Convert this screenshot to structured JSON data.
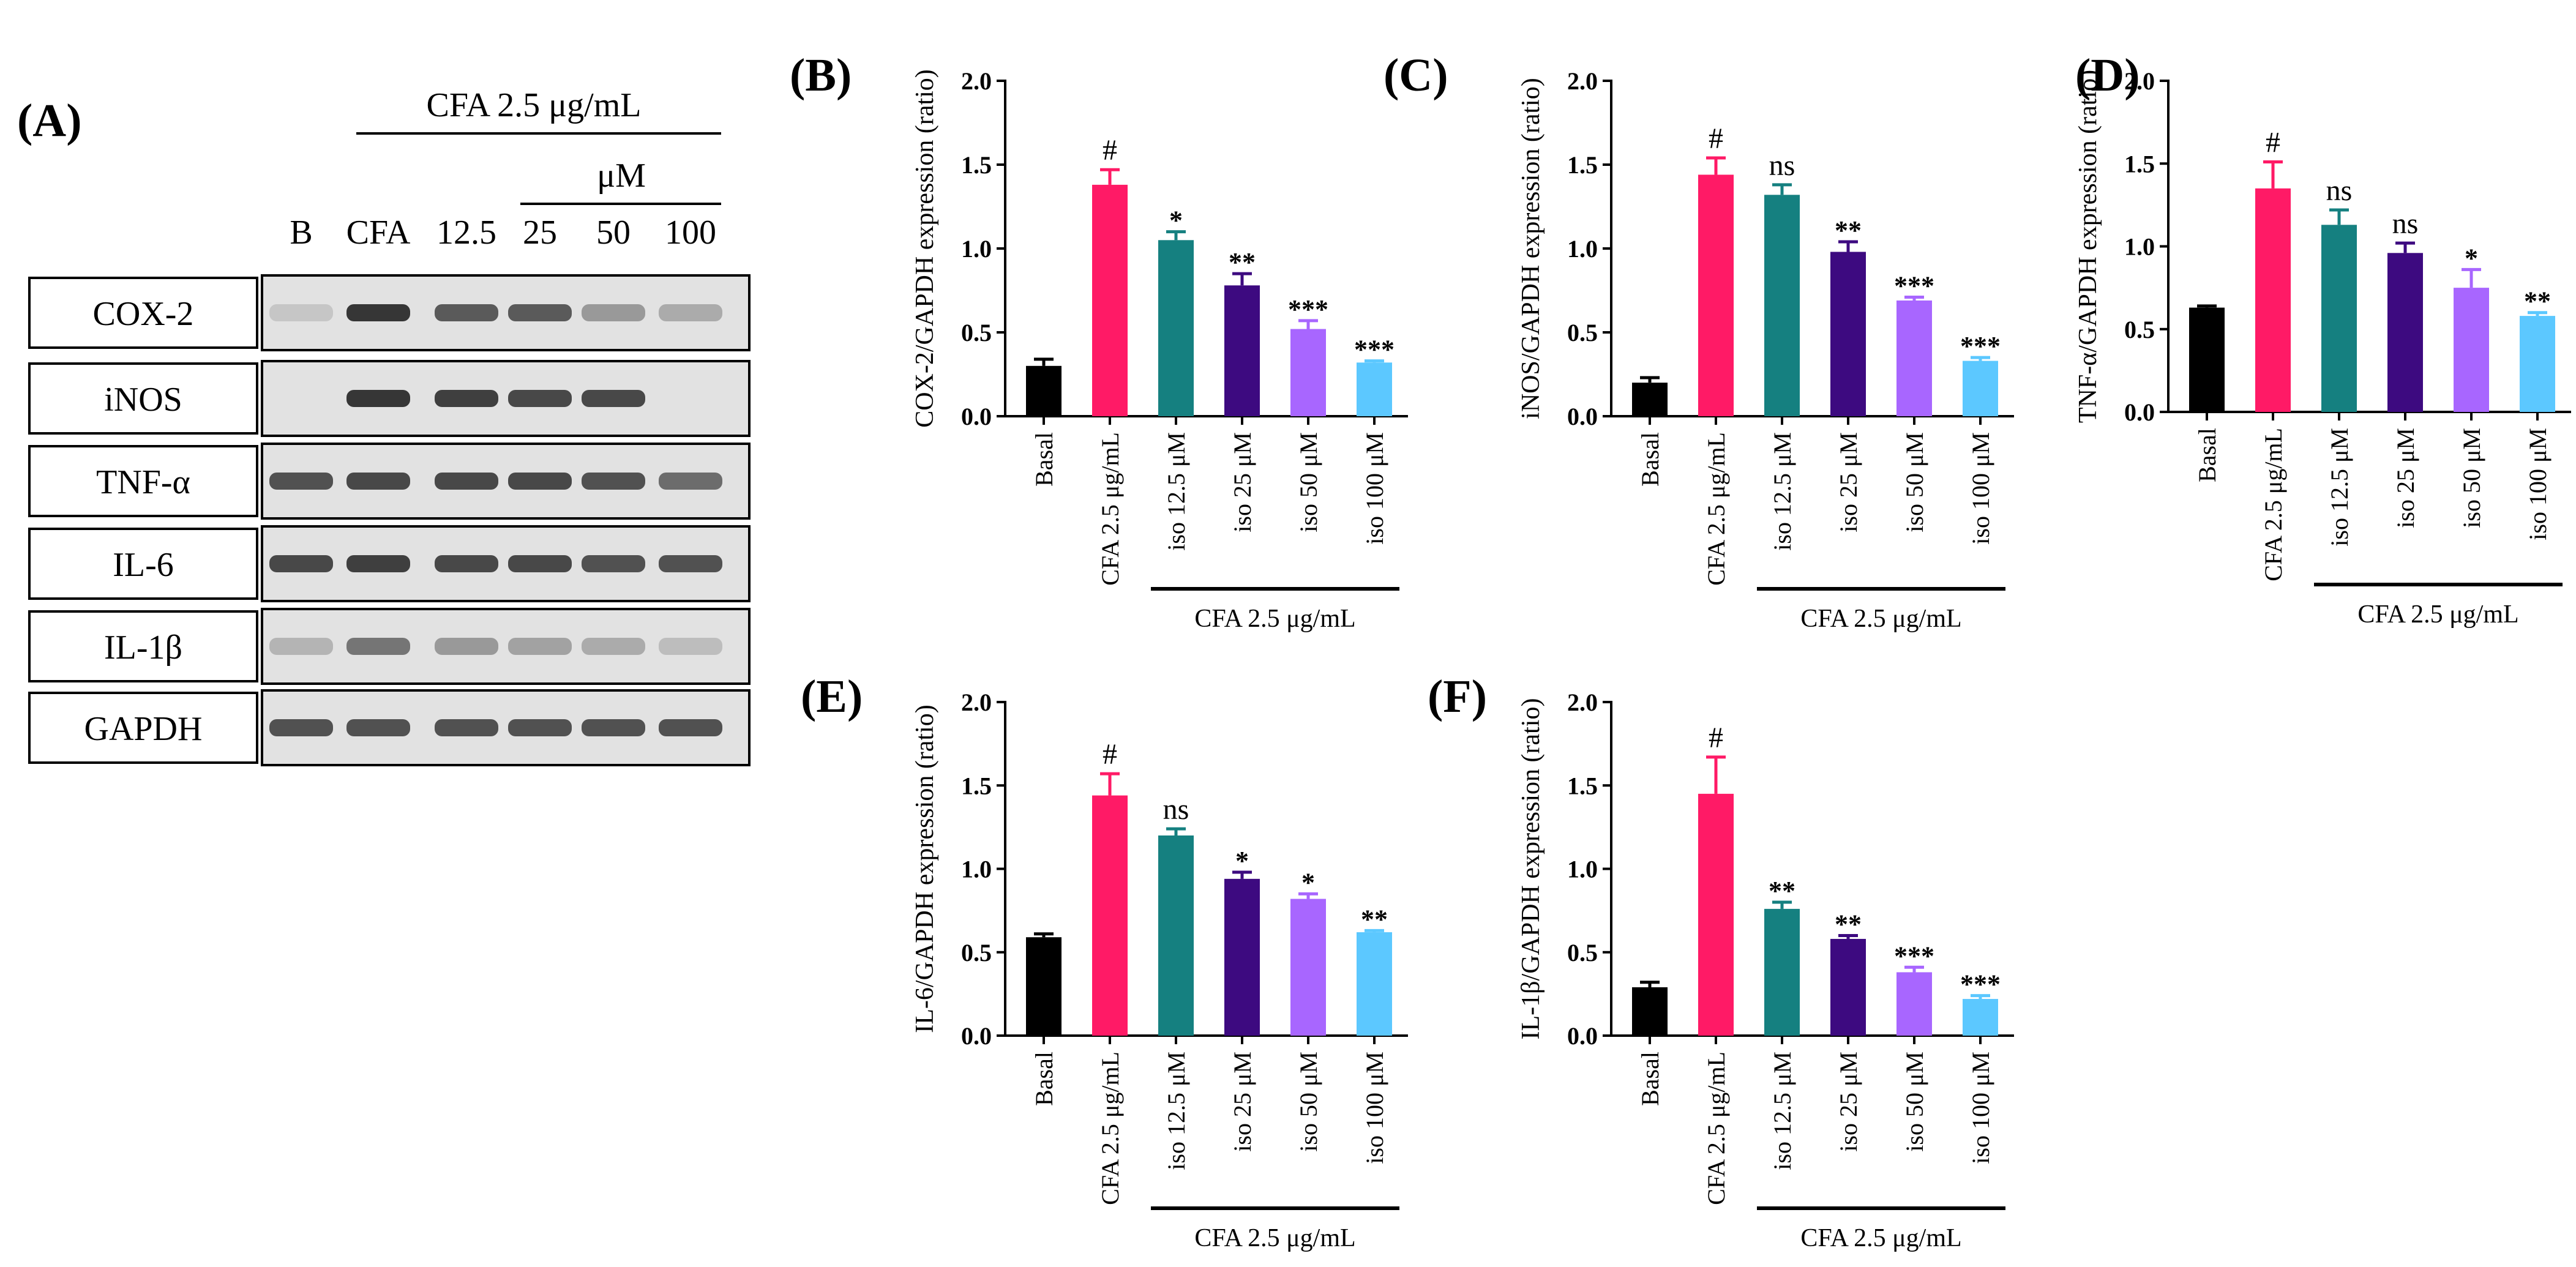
{
  "figure": {
    "blot": {
      "panel_label": "(A)",
      "treatment_header": "CFA 2.5 μg/mL",
      "concentration_unit": "μM",
      "lane_labels": [
        "B",
        "CFA",
        "12.5",
        "25",
        "50",
        "100"
      ],
      "rows": [
        {
          "label": "COX-2",
          "intensities": [
            0.15,
            0.95,
            0.75,
            0.75,
            0.4,
            0.3
          ]
        },
        {
          "label": "iNOS",
          "intensities": [
            0.0,
            0.95,
            0.9,
            0.85,
            0.85,
            0.02
          ]
        },
        {
          "label": "TNF-α",
          "intensities": [
            0.8,
            0.85,
            0.85,
            0.85,
            0.8,
            0.65
          ]
        },
        {
          "label": "IL-6",
          "intensities": [
            0.85,
            0.9,
            0.85,
            0.85,
            0.8,
            0.8
          ]
        },
        {
          "label": "IL-1β",
          "intensities": [
            0.25,
            0.6,
            0.4,
            0.35,
            0.3,
            0.2
          ]
        },
        {
          "label": "GAPDH",
          "intensities": [
            0.8,
            0.8,
            0.8,
            0.8,
            0.8,
            0.8
          ]
        }
      ]
    },
    "colors": [
      "#000000",
      "#ff1a66",
      "#158080",
      "#3d0a80",
      "#a866ff",
      "#5cc8ff"
    ]
  },
  "chart_data": [
    {
      "panel": "(B)",
      "type": "bar",
      "ylabel": "COX-2/GAPDH expression (ratio)",
      "ylim": [
        0,
        2.0
      ],
      "yticks": [
        "0.0",
        "0.5",
        "1.0",
        "1.5",
        "2.0"
      ],
      "categories": [
        "Basal",
        "CFA 2.5 μg/mL",
        "iso 12.5 μM",
        "iso 25 μM",
        "iso 50 μM",
        "iso 100 μM"
      ],
      "values": [
        0.3,
        1.38,
        1.05,
        0.78,
        0.52,
        0.32
      ],
      "errors": [
        0.04,
        0.09,
        0.05,
        0.07,
        0.05,
        0.01
      ],
      "significance": [
        "",
        "#",
        "*",
        "**",
        "***",
        "***"
      ],
      "group_label": "CFA 2.5 μg/mL"
    },
    {
      "panel": "(C)",
      "type": "bar",
      "ylabel": "iNOS/GAPDH expression (ratio)",
      "ylim": [
        0,
        2.0
      ],
      "yticks": [
        "0.0",
        "0.5",
        "1.0",
        "1.5",
        "2.0"
      ],
      "categories": [
        "Basal",
        "CFA 2.5 μg/mL",
        "iso 12.5 μM",
        "iso 25 μM",
        "iso 50 μM",
        "iso 100 μM"
      ],
      "values": [
        0.2,
        1.44,
        1.32,
        0.98,
        0.69,
        0.33
      ],
      "errors": [
        0.03,
        0.1,
        0.06,
        0.06,
        0.02,
        0.02
      ],
      "significance": [
        "",
        "#",
        "ns",
        "**",
        "***",
        "***"
      ],
      "group_label": "CFA 2.5 μg/mL"
    },
    {
      "panel": "(D)",
      "type": "bar",
      "ylabel": "TNF-α/GAPDH expression (ratio)",
      "ylim": [
        0,
        2.0
      ],
      "yticks": [
        "0.0",
        "0.5",
        "1.0",
        "1.5",
        "2.0"
      ],
      "categories": [
        "Basal",
        "CFA 2.5 μg/mL",
        "iso 12.5 μM",
        "iso 25 μM",
        "iso 50 μM",
        "iso 100 μM"
      ],
      "values": [
        0.63,
        1.35,
        1.13,
        0.96,
        0.75,
        0.58
      ],
      "errors": [
        0.01,
        0.16,
        0.09,
        0.06,
        0.11,
        0.02
      ],
      "significance": [
        "",
        "#",
        "ns",
        "ns",
        "*",
        "**"
      ],
      "group_label": "CFA 2.5 μg/mL"
    },
    {
      "panel": "(E)",
      "type": "bar",
      "ylabel": "IL-6/GAPDH expression (ratio)",
      "ylim": [
        0,
        2.0
      ],
      "yticks": [
        "0.0",
        "0.5",
        "1.0",
        "1.5",
        "2.0"
      ],
      "categories": [
        "Basal",
        "CFA 2.5 μg/mL",
        "iso 12.5 μM",
        "iso 25 μM",
        "iso 50 μM",
        "iso 100 μM"
      ],
      "values": [
        0.59,
        1.44,
        1.2,
        0.94,
        0.82,
        0.62
      ],
      "errors": [
        0.02,
        0.13,
        0.04,
        0.04,
        0.03,
        0.01
      ],
      "significance": [
        "",
        "#",
        "ns",
        "*",
        "*",
        "**"
      ],
      "group_label": "CFA 2.5 μg/mL"
    },
    {
      "panel": "(F)",
      "type": "bar",
      "ylabel": "IL-1β/GAPDH expression (ratio)",
      "ylim": [
        0,
        2.0
      ],
      "yticks": [
        "0.0",
        "0.5",
        "1.0",
        "1.5",
        "2.0"
      ],
      "categories": [
        "Basal",
        "CFA 2.5 μg/mL",
        "iso 12.5 μM",
        "iso 25 μM",
        "iso 50 μM",
        "iso 100 μM"
      ],
      "values": [
        0.29,
        1.45,
        0.76,
        0.58,
        0.38,
        0.22
      ],
      "errors": [
        0.03,
        0.22,
        0.04,
        0.02,
        0.03,
        0.02
      ],
      "significance": [
        "",
        "#",
        "**",
        "**",
        "***",
        "***"
      ],
      "group_label": "CFA 2.5 μg/mL"
    }
  ]
}
